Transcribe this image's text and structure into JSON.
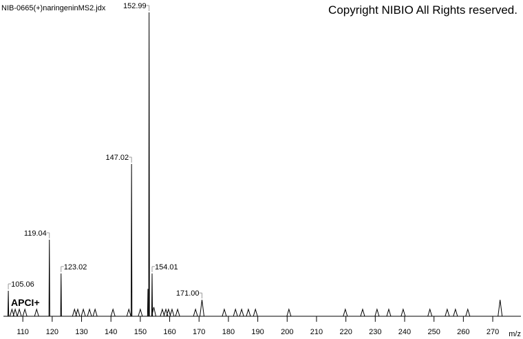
{
  "chart_data": {
    "type": "spectrum",
    "title": "NIB-0665(+)naringeninMS2.jdx",
    "copyright": "Copyright NIBIO All Rights reserved.",
    "annotation": "APCI+",
    "x_label": "m/z",
    "x": [
      105.06,
      106.3,
      107.4,
      108.8,
      110.7,
      114.7,
      119.04,
      123.02,
      127.6,
      128.7,
      130.6,
      132.7,
      134.6,
      140.7,
      146.1,
      147.02,
      150.0,
      152.6,
      152.99,
      154.01,
      154.6,
      157.5,
      158.7,
      159.6,
      160.8,
      162.7,
      168.8,
      171.0,
      178.6,
      182.4,
      184.5,
      186.8,
      189.2,
      200.6,
      219.8,
      225.7,
      230.6,
      234.6,
      239.5,
      248.6,
      254.5,
      257.3,
      261.5,
      272.5
    ],
    "values": [
      8.4,
      2.3,
      2.3,
      2.3,
      2.3,
      2.3,
      25.2,
      14.1,
      2.3,
      2.3,
      2.3,
      2.3,
      2.3,
      2.3,
      2.3,
      50.1,
      2.3,
      9.0,
      100,
      14.1,
      3.0,
      2.3,
      2.3,
      2.3,
      2.3,
      2.3,
      2.3,
      5.4,
      2.3,
      2.3,
      2.3,
      2.3,
      2.3,
      2.3,
      2.3,
      2.3,
      2.3,
      2.3,
      2.3,
      2.3,
      2.3,
      2.3,
      2.3,
      5.4
    ],
    "x_labels": [
      "105.06",
      null,
      null,
      null,
      null,
      null,
      "119.04",
      "123.02",
      null,
      null,
      null,
      null,
      null,
      null,
      null,
      "147.02",
      null,
      null,
      "152.99",
      "154.01",
      null,
      null,
      null,
      null,
      null,
      null,
      null,
      "171.00",
      null,
      null,
      null,
      null,
      null,
      null,
      null,
      null,
      null,
      null,
      null,
      null,
      null,
      null,
      null,
      null
    ],
    "xlim": [
      103.4,
      279.6
    ],
    "ylim": [
      0,
      100
    ],
    "xticks": [
      110,
      120,
      130,
      140,
      150,
      160,
      170,
      180,
      190,
      200,
      210,
      220,
      230,
      240,
      250,
      260,
      270
    ],
    "color": "#000000"
  }
}
